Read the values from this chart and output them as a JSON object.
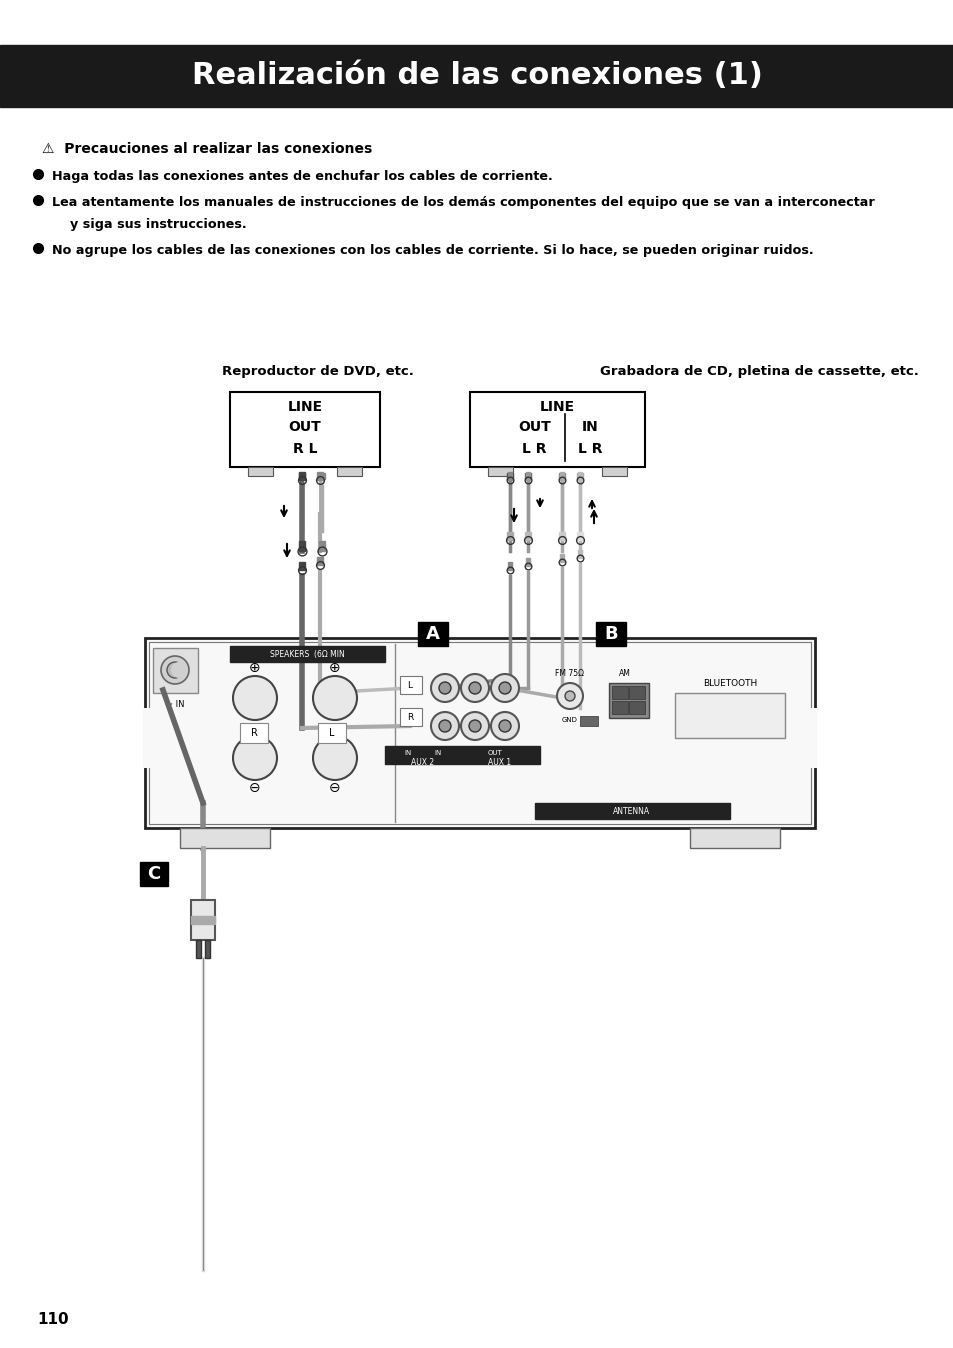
{
  "title": "Realización de las conexiones (1)",
  "title_bg": "#1a1a1a",
  "title_color": "#ffffff",
  "title_fontsize": 22,
  "warning_heading": "⚠  Precauciones al realizar las conexiones",
  "bullets": [
    "Haga todas las conexiones antes de enchufar los cables de corriente.",
    "Lea atentamente los manuales de instrucciones de los demás componentes del equipo que se van a interconectar\n    y siga sus instrucciones.",
    "No agrupe los cables de las conexiones con los cables de corriente. Si lo hace, se pueden originar ruidos."
  ],
  "label_dvd": "Reproductor de DVD, etc.",
  "label_cd": "Grabadora de CD, pletina de cassette, etc.",
  "label_A": "A",
  "label_B": "B",
  "label_C": "C",
  "page_number": "110",
  "bg_color": "#ffffff"
}
